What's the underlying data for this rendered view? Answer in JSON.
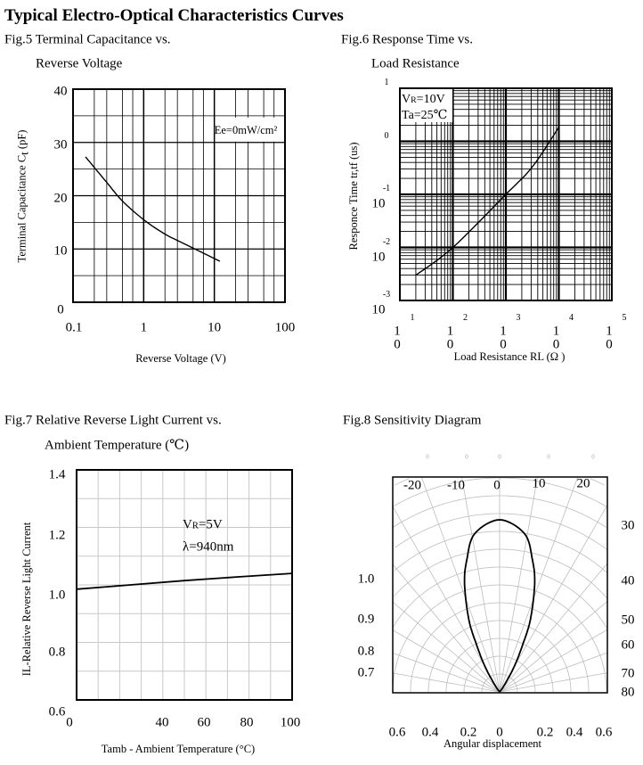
{
  "page_title": "Typical Electro-Optical Characteristics Curves",
  "chart_data": [
    {
      "id": "fig5",
      "type": "line",
      "title_lines": [
        "Fig.5 Terminal Capacitance vs.",
        "Reverse Voltage"
      ],
      "xlabel": "Reverse Voltage (V)",
      "ylabel": {
        "main": "Terminal Capacitance C",
        "sub": "t",
        "unit": "(pF)"
      },
      "xscale": "log",
      "xlim": [
        0.1,
        100
      ],
      "ylim": [
        0,
        40
      ],
      "xticks": [
        "0.1",
        "1",
        "10",
        "100"
      ],
      "yticks": [
        "0",
        "10",
        "20",
        "30",
        "40"
      ],
      "grid": true,
      "annotation": "Ee=0mW/cm²",
      "series": [
        {
          "x": [
            0.15,
            0.3,
            0.5,
            1,
            2,
            4,
            12
          ],
          "y": [
            27.3,
            22.5,
            19,
            15.5,
            12.8,
            10.8,
            7.7
          ]
        }
      ]
    },
    {
      "id": "fig6",
      "type": "line",
      "title_lines": [
        "Fig.6 Response Time vs.",
        "Load Resistance"
      ],
      "xlabel": "Load Resistance RL (Ω )",
      "ylabel": "Responce Time tr,tf (us)",
      "xscale": "log",
      "yscale": "log",
      "xlim": [
        10,
        100000
      ],
      "ylim": [
        0.001,
        10
      ],
      "xticks": [
        {
          "base": "10",
          "exp": "1"
        },
        {
          "base": "10",
          "exp": "2"
        },
        {
          "base": "10",
          "exp": "3"
        },
        {
          "base": "10",
          "exp": "4"
        },
        {
          "base": "10",
          "exp": "5"
        }
      ],
      "yticks": [
        {
          "base": "",
          "exp": "1"
        },
        {
          "base": "",
          "exp": "0"
        },
        {
          "base": "10",
          "exp": "-1"
        },
        {
          "base": "10",
          "exp": "-2"
        },
        {
          "base": "10",
          "exp": "-3"
        }
      ],
      "grid": true,
      "annotation_lines": [
        {
          "main": "V",
          "sub": "R",
          "rest": "=10V"
        },
        {
          "main": "Ta=25℃",
          "sub": "",
          "rest": ""
        }
      ],
      "series": [
        {
          "x": [
            20,
            100,
            1000,
            3162,
            10000
          ],
          "y": [
            0.003,
            0.01,
            0.1,
            0.33,
            1.85
          ]
        }
      ]
    },
    {
      "id": "fig7",
      "type": "line",
      "title_lines": [
        "Fig.7 Relative Reverse Light Current vs.",
        "Ambient Temperature (℃)"
      ],
      "xlabel": "Tamb - Ambient Temperature  (°C)",
      "ylabel": "IL-Relative Reverse Light Current",
      "xlim": [
        0,
        100
      ],
      "ylim": [
        0.6,
        1.4
      ],
      "xticks": [
        "0",
        "40",
        "60",
        "80",
        "100"
      ],
      "yticks": [
        "1.4",
        "1.2",
        "1.0",
        "0.8",
        "0.6"
      ],
      "grid": true,
      "annotation_lines": [
        {
          "main": "V",
          "sub": "R",
          "rest": "=5V"
        },
        {
          "main": "λ=940nm",
          "sub": "",
          "rest": ""
        }
      ],
      "series": [
        {
          "x": [
            0,
            25,
            50,
            75,
            100
          ],
          "y": [
            0.985,
            1.0,
            1.015,
            1.028,
            1.04
          ]
        }
      ]
    },
    {
      "id": "fig8",
      "type": "polar",
      "title_lines": [
        "Fig.8 Sensitivity Diagram"
      ],
      "xlabel": "Angular displacement",
      "top_marks": [
        "0",
        "0",
        "0",
        "0",
        "0"
      ],
      "angle_ticks_top": [
        "-20",
        "-10",
        "0",
        "10",
        "20"
      ],
      "angle_ticks_right": [
        "30",
        "40",
        "50",
        "60",
        "70",
        "80"
      ],
      "radius_ticks_left": [
        "1.0",
        "0.9",
        "0.8",
        "0.7"
      ],
      "bottom_ticks": [
        "0.6",
        "0.4",
        "0.2",
        "0",
        "0.2",
        "0.4",
        "0.6"
      ],
      "grid": true,
      "series": [
        {
          "angle_deg": [
            0,
            9,
            14,
            18,
            23,
            26,
            30,
            35,
            40
          ],
          "relative_sensitivity": [
            1.0,
            0.93,
            0.79,
            0.66,
            0.46,
            0.31,
            0.17,
            0.05,
            0.0
          ]
        }
      ]
    }
  ]
}
